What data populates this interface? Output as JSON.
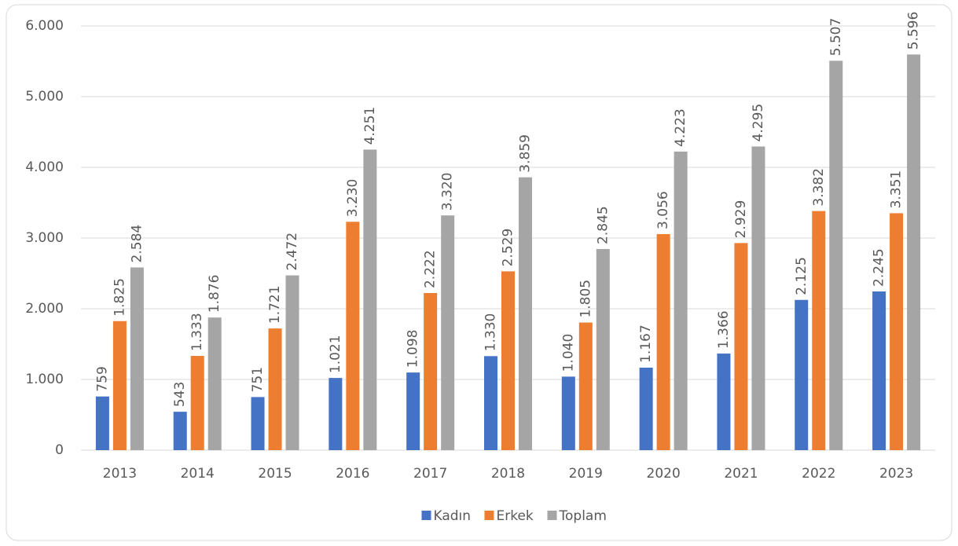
{
  "chart_data": {
    "type": "bar",
    "categories": [
      "2013",
      "2014",
      "2015",
      "2016",
      "2017",
      "2018",
      "2019",
      "2020",
      "2021",
      "2022",
      "2023"
    ],
    "series": [
      {
        "name": "Kadın",
        "color": "#4472c4",
        "values": [
          759,
          543,
          751,
          1021,
          1098,
          1330,
          1040,
          1167,
          1366,
          2125,
          2245
        ],
        "value_labels": [
          "759",
          "543",
          "751",
          "1.021",
          "1.098",
          "1.330",
          "1.040",
          "1.167",
          "1.366",
          "2.125",
          "2.245"
        ]
      },
      {
        "name": "Erkek",
        "color": "#ed7d31",
        "values": [
          1825,
          1333,
          1721,
          3230,
          2222,
          2529,
          1805,
          3056,
          2929,
          3382,
          3351
        ],
        "value_labels": [
          "1.825",
          "1.333",
          "1.721",
          "3.230",
          "2.222",
          "2.529",
          "1.805",
          "3.056",
          "2.929",
          "3.382",
          "3.351"
        ]
      },
      {
        "name": "Toplam",
        "color": "#a5a5a5",
        "values": [
          2584,
          1876,
          2472,
          4251,
          3320,
          3859,
          2845,
          4223,
          4295,
          5507,
          5596
        ],
        "value_labels": [
          "2.584",
          "1.876",
          "2.472",
          "4.251",
          "3.320",
          "3.859",
          "2.845",
          "4.223",
          "4.295",
          "5.507",
          "5.596"
        ]
      }
    ],
    "ylim": [
      0,
      6000
    ],
    "yticks": [
      0,
      {
        "value": 1000,
        "label": "1.000"
      },
      {
        "value": 2000,
        "label": "2.000"
      },
      {
        "value": 3000,
        "label": "3.000"
      },
      {
        "value": 4000,
        "label": "4.000"
      },
      {
        "value": 5000,
        "label": "5.000"
      },
      {
        "value": 6000,
        "label": "6.000"
      }
    ],
    "grid": true,
    "legend": "bottom"
  }
}
